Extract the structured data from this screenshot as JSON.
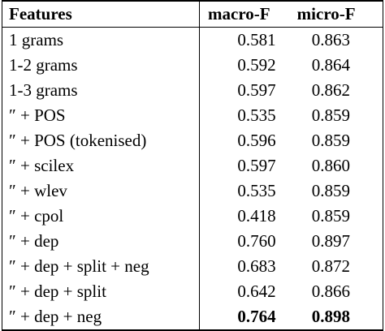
{
  "table": {
    "header": [
      "Features",
      "macro-F",
      "micro-F"
    ],
    "rows": [
      [
        "1 grams",
        "0.581",
        "0.863"
      ],
      [
        "1-2 grams",
        "0.592",
        "0.864"
      ],
      [
        "1-3 grams",
        "0.597",
        "0.862"
      ],
      [
        "″ + POS",
        "0.535",
        "0.859"
      ],
      [
        "″ + POS (tokenised)",
        "0.596",
        "0.859"
      ],
      [
        "″ + scilex",
        "0.597",
        "0.860"
      ],
      [
        "″ + wlev",
        "0.535",
        "0.859"
      ],
      [
        "″ + cpol",
        "0.418",
        "0.859"
      ],
      [
        "″ + dep",
        "0.760",
        "0.897"
      ],
      [
        "″ + dep + split + neg",
        "0.683",
        "0.872"
      ],
      [
        "″ + dep + split",
        "0.642",
        "0.866"
      ],
      [
        "″ + dep + neg",
        "0.764",
        "0.898"
      ]
    ]
  }
}
